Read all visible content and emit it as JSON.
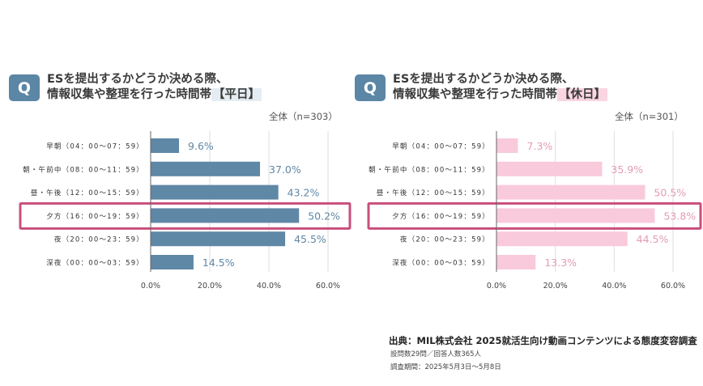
{
  "chart_data": [
    {
      "type": "bar",
      "orientation": "horizontal",
      "question_badge": "Q",
      "title_line1": "ESを提出するかどうか決める際、",
      "title_line2": "情報収集や整理を行った時間帯",
      "title_tag": "【平日】",
      "sample_label": "全体（n=303）",
      "categories": [
        "早朝（04：00〜07：59）",
        "朝・午前中（08：00〜11：59）",
        "昼・午後（12：00〜15：59）",
        "夕方（16：00〜19：59）",
        "夜（20：00〜23：59）",
        "深夜（00：00〜03：59）"
      ],
      "values": [
        9.6,
        37.0,
        43.2,
        50.2,
        45.5,
        14.5
      ],
      "value_labels": [
        "9.6%",
        "37.0%",
        "43.2%",
        "50.2%",
        "45.5%",
        "14.5%"
      ],
      "xlim": [
        0,
        60
      ],
      "x_ticks": [
        "0.0%",
        "20.0%",
        "40.0%",
        "60.0%"
      ],
      "x_tick_values": [
        0,
        20,
        40,
        60
      ],
      "highlighted_category": "夕方（16：00〜19：59）",
      "bar_color": "#5f87a6",
      "label_color": "#5f87a6",
      "grid": true
    },
    {
      "type": "bar",
      "orientation": "horizontal",
      "question_badge": "Q",
      "title_line1": "ESを提出するかどうか決める際、",
      "title_line2": "情報収集や整理を行った時間帯",
      "title_tag": "【休日】",
      "sample_label": "全体（n=301）",
      "categories": [
        "早朝（04：00〜07：59）",
        "朝・午前中（08：00〜11：59）",
        "昼・午後（12：00〜15：59）",
        "夕方（16：00〜19：59）",
        "夜（20：00〜23：59）",
        "深夜（00：00〜03：59）"
      ],
      "values": [
        7.3,
        35.9,
        50.5,
        53.8,
        44.5,
        13.3
      ],
      "value_labels": [
        "7.3%",
        "35.9%",
        "50.5%",
        "53.8%",
        "44.5%",
        "13.3%"
      ],
      "xlim": [
        0,
        60
      ],
      "x_ticks": [
        "0.0%",
        "20.0%",
        "40.0%",
        "60.0%"
      ],
      "x_tick_values": [
        0,
        20,
        40,
        60
      ],
      "highlighted_category": "夕方（16：00〜19：59）",
      "bar_color": "#f9cadb",
      "label_color": "#e39bb7",
      "grid": true
    }
  ],
  "colors": {
    "badge": "#5b86a5",
    "highlight_border": "#c94f7c",
    "weekday_tag_bg": "#e6edf2",
    "holiday_tag_bg": "#f9d5e2"
  },
  "source": {
    "main": "出典：MIL株式会社 2025就活生向け動画コンテンツによる態度変容調査",
    "line2": "設問数29問／回答人数365人",
    "line3": "調査期間：2025年5月3日〜5月8日"
  }
}
